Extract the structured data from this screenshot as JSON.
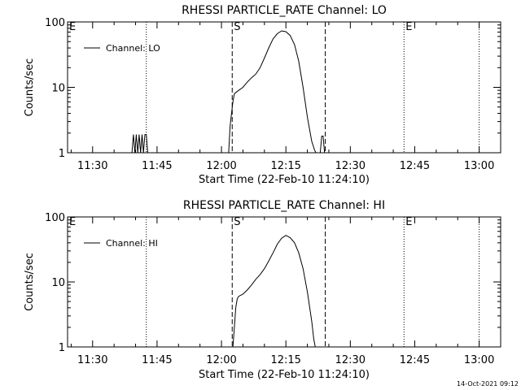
{
  "footer": {
    "timestamp": "14-Oct-2021 09:12"
  },
  "chart_data": [
    {
      "type": "line",
      "title": "RHESSI PARTICLE_RATE Channel: LO",
      "xlabel": "Start Time (22-Feb-10 11:24:10)",
      "ylabel": "Counts/sec",
      "yscale": "log",
      "xlim": [
        "11:24:10",
        "13:05"
      ],
      "ylim": [
        1,
        100
      ],
      "x_ticks": [
        "11:30",
        "11:45",
        "12:00",
        "12:15",
        "12:30",
        "12:45",
        "13:00"
      ],
      "y_ticks": [
        "1",
        "10",
        "100"
      ],
      "legend": {
        "position": "top-left",
        "entries": [
          "Channel: LO"
        ]
      },
      "series": [
        {
          "name": "Channel: LO",
          "x": [
            "11:39:10",
            "11:39:30",
            "11:39:50",
            "11:40:10",
            "11:40:30",
            "11:40:50",
            "11:41:10",
            "11:41:30",
            "11:41:50",
            "11:42:10",
            "11:42:30",
            "11:42:50",
            "12:01:40",
            "12:02:00",
            "12:02:20",
            "12:02:40",
            "12:03:00",
            "12:04:00",
            "12:05:00",
            "12:06:00",
            "12:07:00",
            "12:08:00",
            "12:09:00",
            "12:10:00",
            "12:11:00",
            "12:12:00",
            "12:13:00",
            "12:14:00",
            "12:15:00",
            "12:16:00",
            "12:17:00",
            "12:18:00",
            "12:19:00",
            "12:20:00",
            "12:21:00",
            "12:21:40",
            "12:22:00",
            "12:23:00",
            "12:23:20",
            "12:23:40",
            "12:24:00"
          ],
          "y": [
            1,
            1.9,
            1,
            1.9,
            1,
            1.9,
            1,
            1.9,
            1,
            1.9,
            1.9,
            1,
            1,
            2.5,
            4,
            6,
            8,
            9,
            10,
            12,
            14,
            16,
            20,
            28,
            40,
            55,
            66,
            73,
            71,
            62,
            45,
            25,
            10,
            3.5,
            1.5,
            1.1,
            1,
            1,
            1.8,
            1.8,
            1
          ]
        }
      ],
      "annotations": [
        {
          "text": "E",
          "x": "11:24:10"
        },
        {
          "text": "S",
          "x": "12:02:30"
        },
        {
          "text": "E",
          "x": "12:42:30"
        }
      ],
      "vertical_lines": [
        {
          "x": "11:42:30",
          "style": "dotted"
        },
        {
          "x": "12:02:30",
          "style": "dashed"
        },
        {
          "x": "12:24:10",
          "style": "dashed"
        },
        {
          "x": "12:42:30",
          "style": "dotted"
        },
        {
          "x": "13:00:00",
          "style": "dotted"
        }
      ]
    },
    {
      "type": "line",
      "title": "RHESSI PARTICLE_RATE Channel: HI",
      "xlabel": "Start Time (22-Feb-10 11:24:10)",
      "ylabel": "Counts/sec",
      "yscale": "log",
      "xlim": [
        "11:24:10",
        "13:05"
      ],
      "ylim": [
        1,
        100
      ],
      "x_ticks": [
        "11:30",
        "11:45",
        "12:00",
        "12:15",
        "12:30",
        "12:45",
        "13:00"
      ],
      "y_ticks": [
        "1",
        "10",
        "100"
      ],
      "legend": {
        "position": "top-left",
        "entries": [
          "Channel: HI"
        ]
      },
      "series": [
        {
          "name": "Channel: HI",
          "x": [
            "12:02:40",
            "12:03:00",
            "12:03:20",
            "12:03:40",
            "12:04:00",
            "12:05:00",
            "12:06:00",
            "12:07:00",
            "12:08:00",
            "12:09:00",
            "12:10:00",
            "12:11:00",
            "12:12:00",
            "12:13:00",
            "12:14:00",
            "12:15:00",
            "12:16:00",
            "12:17:00",
            "12:18:00",
            "12:19:00",
            "12:20:00",
            "12:21:00",
            "12:21:30",
            "12:21:50"
          ],
          "y": [
            1,
            2,
            4,
            5.5,
            6,
            6.5,
            7.5,
            9,
            11,
            13,
            16,
            21,
            28,
            38,
            47,
            52,
            48,
            40,
            28,
            16,
            7,
            2.5,
            1.3,
            1
          ]
        }
      ],
      "annotations": [
        {
          "text": "E",
          "x": "11:24:10"
        },
        {
          "text": "S",
          "x": "12:02:30"
        },
        {
          "text": "E",
          "x": "12:42:30"
        }
      ],
      "vertical_lines": [
        {
          "x": "11:42:30",
          "style": "dotted"
        },
        {
          "x": "12:02:30",
          "style": "dashed"
        },
        {
          "x": "12:24:10",
          "style": "dashed"
        },
        {
          "x": "12:42:30",
          "style": "dotted"
        },
        {
          "x": "13:00:00",
          "style": "dotted"
        }
      ]
    }
  ]
}
